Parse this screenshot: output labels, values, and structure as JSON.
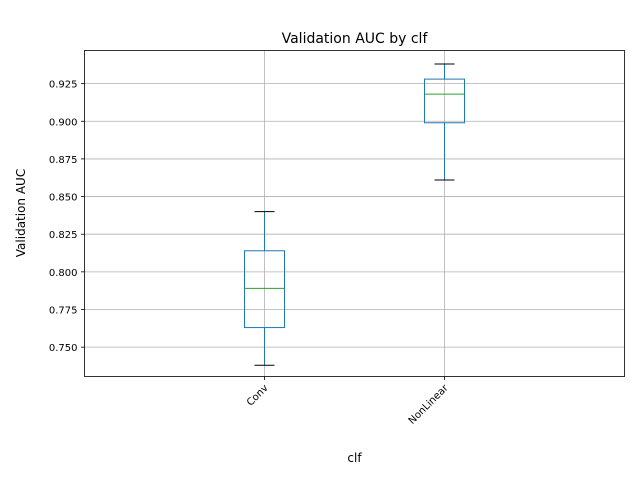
{
  "chart_data": {
    "type": "box",
    "title": "Validation AUC by clf",
    "xlabel": "clf",
    "ylabel": "Validation AUC",
    "categories": [
      "Conv",
      "NonLinear"
    ],
    "boxes": [
      {
        "name": "Conv",
        "whisker_low": 0.738,
        "q1": 0.763,
        "median": 0.789,
        "q3": 0.814,
        "whisker_high": 0.84
      },
      {
        "name": "NonLinear",
        "whisker_low": 0.861,
        "q1": 0.899,
        "median": 0.918,
        "q3": 0.928,
        "whisker_high": 0.938
      }
    ],
    "yticks": [
      0.75,
      0.775,
      0.8,
      0.825,
      0.85,
      0.875,
      0.9,
      0.925
    ],
    "ytick_labels": [
      "0.750",
      "0.775",
      "0.800",
      "0.825",
      "0.850",
      "0.875",
      "0.900",
      "0.925"
    ],
    "ylim": [
      0.7305,
      0.947
    ],
    "grid": true,
    "colors": {
      "box": "#1f77b4",
      "median": "#2ca02c",
      "cap": "#000000",
      "grid": "#b0b0b0"
    }
  }
}
